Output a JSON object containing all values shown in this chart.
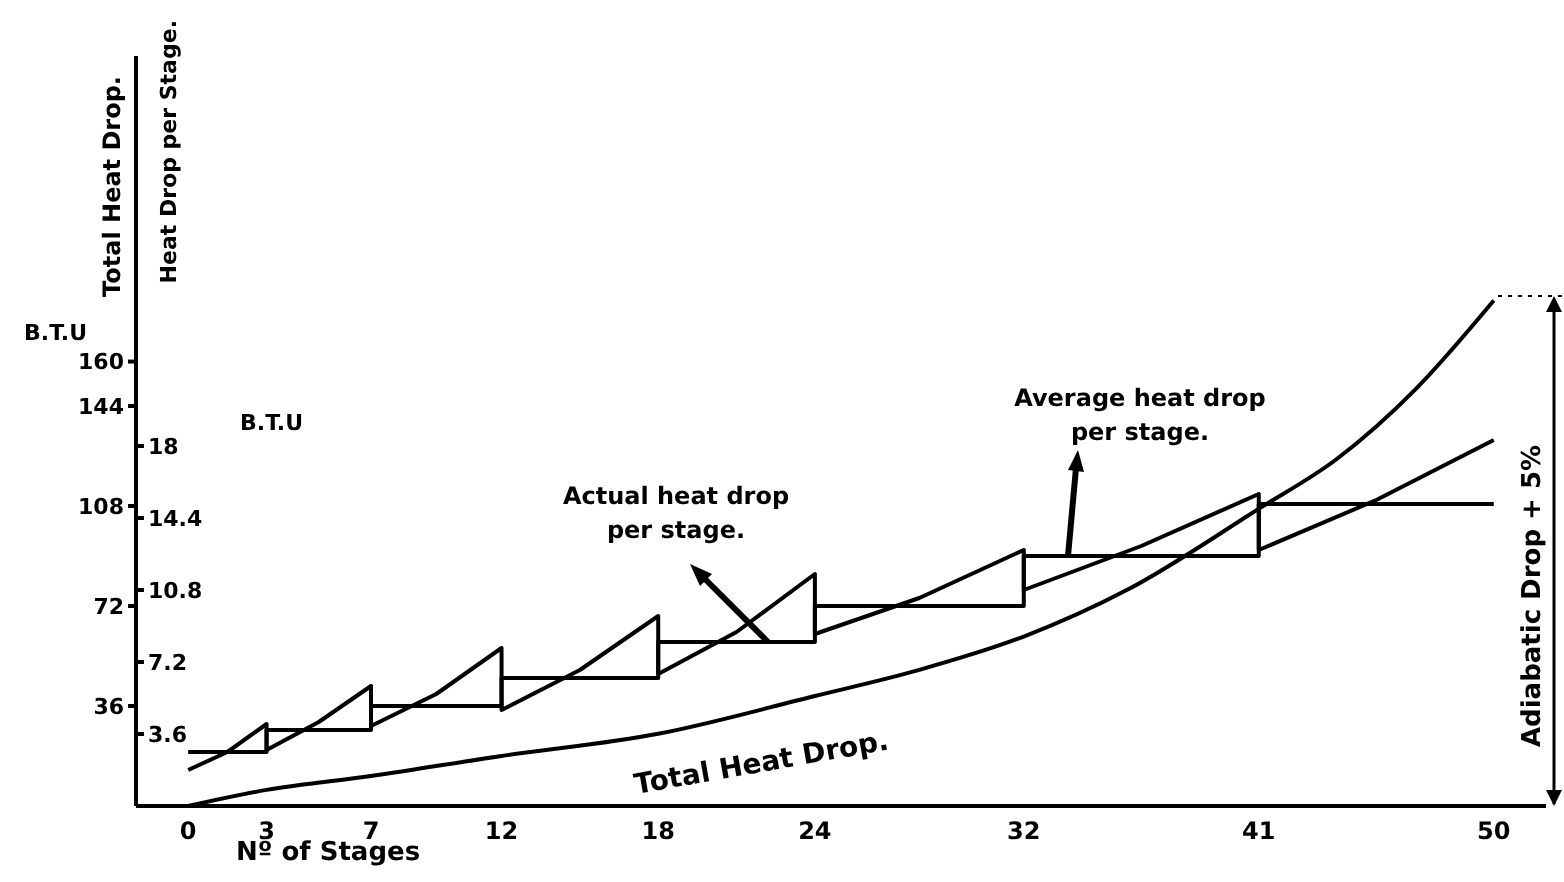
{
  "chart_data": {
    "type": "line",
    "xlabel": "Nº of Stages",
    "ylabel": "Total Heat Drop.",
    "y2label": "Heat Drop per Stage.",
    "annotations": [
      "B.T.U",
      "B.T.U",
      "Adiabatic Drop + 5%"
    ],
    "xlim": [
      -2,
      52
    ],
    "xticks": [
      0,
      3,
      7,
      12,
      18,
      24,
      32,
      41,
      50
    ],
    "ylim": [
      0,
      270
    ],
    "yticks": [
      36,
      72,
      108,
      144,
      160
    ],
    "y2lim": [
      0,
      37.5
    ],
    "y2ticks": [
      3.6,
      7.2,
      10.8,
      14.4,
      18
    ],
    "series": [
      {
        "name": "Total Heat Drop.",
        "color": "#000000",
        "x": [
          0,
          3,
          7,
          12,
          18,
          24,
          28,
          32,
          36,
          41,
          44,
          47,
          50
        ],
        "values": [
          0,
          5.8,
          10.8,
          18,
          26,
          39.6,
          49,
          61,
          78,
          107,
          125,
          150,
          182
        ]
      },
      {
        "name": "Actual heat drop per stage.",
        "axis": "y2",
        "color": "#000000",
        "x": [
          0,
          1.5,
          3,
          3,
          5,
          7,
          7,
          9.5,
          12,
          12,
          15,
          18,
          18,
          21,
          24,
          24,
          28,
          32,
          32,
          36.5,
          41,
          41,
          45.5,
          50
        ],
        "values": [
          1.8,
          2.7,
          4.1,
          2.8,
          4.2,
          6.0,
          4.0,
          5.6,
          7.9,
          4.8,
          6.8,
          9.5,
          6.6,
          8.7,
          11.6,
          8.6,
          10.4,
          12.8,
          10.8,
          13.0,
          15.6,
          12.8,
          15.3,
          18.3
        ]
      },
      {
        "name": "Average heat drop per stage.",
        "type": "step",
        "axis": "y2",
        "color": "#000000",
        "x": [
          0,
          3,
          7,
          12,
          18,
          24,
          32,
          41,
          50
        ],
        "values": [
          2.7,
          3.8,
          5.0,
          6.4,
          8.2,
          10.0,
          12.5,
          15.1,
          15.1
        ]
      }
    ],
    "marker": "none",
    "grid": false,
    "legend": false
  }
}
